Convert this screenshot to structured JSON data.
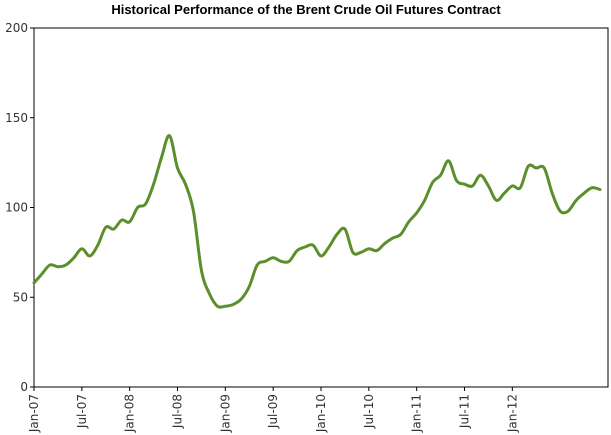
{
  "chart_data": {
    "type": "line",
    "title": "Historical Performance of the Brent Crude Oil Futures Contract",
    "xlabel": "",
    "ylabel": "",
    "ylim": [
      0,
      200
    ],
    "yticks": [
      0,
      50,
      100,
      150,
      200
    ],
    "xlim": [
      "2007-01",
      "2012-12"
    ],
    "xticks": [
      "Jan-07",
      "Jul-07",
      "Jan-08",
      "Jul-08",
      "Jan-09",
      "Jul-09",
      "Jan-10",
      "Jul-10",
      "Jan-11",
      "Jul-11",
      "Jan-12"
    ],
    "grid": false,
    "legend": "none",
    "line_color": "#5b8f2c",
    "series": [
      {
        "x": [
          "2007-01",
          "2007-02",
          "2007-03",
          "2007-04",
          "2007-05",
          "2007-06",
          "2007-07",
          "2007-08",
          "2007-09",
          "2007-10",
          "2007-11",
          "2007-12",
          "2008-01",
          "2008-02",
          "2008-03",
          "2008-04",
          "2008-05",
          "2008-06",
          "2008-07",
          "2008-08",
          "2008-09",
          "2008-10",
          "2008-11",
          "2008-12",
          "2009-01",
          "2009-02",
          "2009-03",
          "2009-04",
          "2009-05",
          "2009-06",
          "2009-07",
          "2009-08",
          "2009-09",
          "2009-10",
          "2009-11",
          "2009-12",
          "2010-01",
          "2010-02",
          "2010-03",
          "2010-04",
          "2010-05",
          "2010-06",
          "2010-07",
          "2010-08",
          "2010-09",
          "2010-10",
          "2010-11",
          "2010-12",
          "2011-01",
          "2011-02",
          "2011-03",
          "2011-04",
          "2011-05",
          "2011-06",
          "2011-07",
          "2011-08",
          "2011-09",
          "2011-10",
          "2011-11",
          "2011-12",
          "2012-01",
          "2012-02",
          "2012-03",
          "2012-04",
          "2012-05",
          "2012-06",
          "2012-07",
          "2012-08",
          "2012-09",
          "2012-10",
          "2012-11",
          "2012-12"
        ],
        "values": [
          58,
          63,
          68,
          67,
          68,
          72,
          77,
          73,
          79,
          89,
          88,
          93,
          92,
          100,
          102,
          113,
          128,
          140,
          122,
          113,
          98,
          65,
          52,
          45,
          45,
          46,
          49,
          56,
          68,
          70,
          72,
          70,
          70,
          76,
          78,
          79,
          73,
          78,
          85,
          88,
          75,
          75,
          77,
          76,
          80,
          83,
          85,
          92,
          97,
          104,
          114,
          118,
          126,
          115,
          113,
          112,
          118,
          112,
          104,
          108,
          112,
          111,
          123,
          122,
          122,
          108,
          98,
          98,
          104,
          108,
          111,
          110
        ]
      }
    ]
  }
}
